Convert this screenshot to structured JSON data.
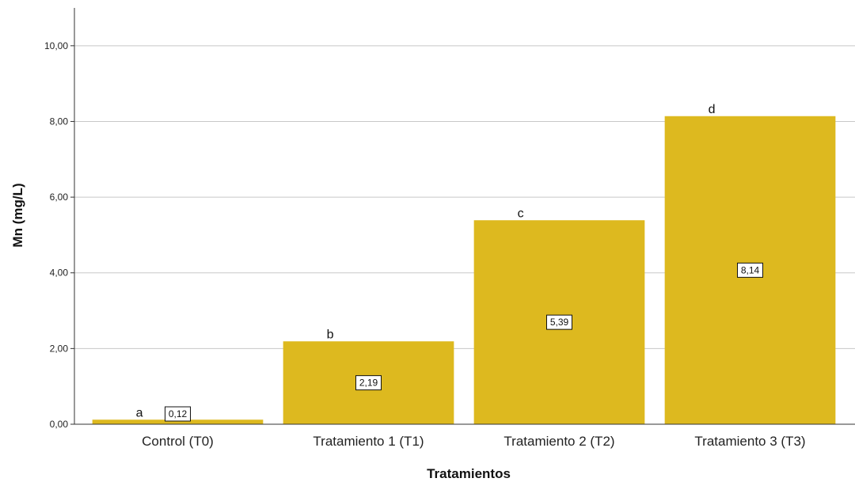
{
  "chart_data": {
    "type": "bar",
    "title": "",
    "xlabel": "Tratamientos",
    "ylabel": "Mn (mg/L)",
    "categories": [
      "Control (T0)",
      "Tratamiento 1 (T1)",
      "Tratamiento 2 (T2)",
      "Tratamiento 3 (T3)"
    ],
    "values": [
      0.12,
      2.19,
      5.39,
      8.14
    ],
    "value_labels": [
      "0,12",
      "2,19",
      "5,39",
      "8,14"
    ],
    "significance_letters": [
      "a",
      "b",
      "c",
      "d"
    ],
    "ylim": [
      0,
      11
    ],
    "yticks": [
      0,
      2,
      4,
      6,
      8,
      10
    ],
    "ytick_labels": [
      "0,00",
      "2,00",
      "4,00",
      "6,00",
      "8,00",
      "10,00"
    ],
    "grid": true,
    "bar_color": "#DDB91F"
  }
}
